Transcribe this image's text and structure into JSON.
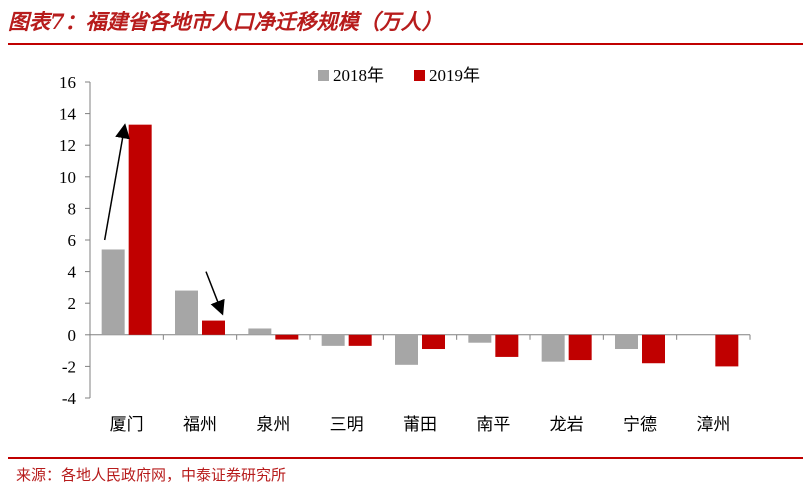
{
  "header": {
    "title": "图表7：福建省各地市人口净迁移规模（万人）"
  },
  "footer": {
    "source": "来源：各地人民政府网，中泰证券研究所"
  },
  "colors": {
    "s2018": "#a6a6a6",
    "s2019": "#c00000",
    "accent": "#c00000"
  },
  "chart_data": {
    "type": "bar",
    "title": "",
    "xlabel": "",
    "ylabel": "",
    "categories": [
      "厦门",
      "福州",
      "泉州",
      "三明",
      "莆田",
      "南平",
      "龙岩",
      "宁德",
      "漳州"
    ],
    "series": [
      {
        "name": "2018年",
        "values": [
          5.4,
          2.8,
          0.4,
          -0.7,
          -1.9,
          -0.5,
          -1.7,
          -0.9,
          0
        ]
      },
      {
        "name": "2019年",
        "values": [
          13.3,
          0.9,
          -0.3,
          -0.7,
          -0.9,
          -1.4,
          -1.6,
          -1.8,
          -2.0
        ]
      }
    ],
    "ylim": [
      -4,
      16
    ],
    "yticks": [
      "16",
      "14",
      "12",
      "10",
      "8",
      "6",
      "4",
      "2",
      "0",
      "-2",
      "-4"
    ],
    "legend": "top-center",
    "grid": false,
    "annotations": [
      {
        "type": "arrow",
        "from": {
          "category": "厦门",
          "value": 6
        },
        "to": {
          "category": "厦门",
          "value": 13.2
        }
      },
      {
        "type": "arrow",
        "from": {
          "category": "福州",
          "value": 4
        },
        "to": {
          "category": "福州",
          "value": 1.4
        }
      }
    ]
  }
}
